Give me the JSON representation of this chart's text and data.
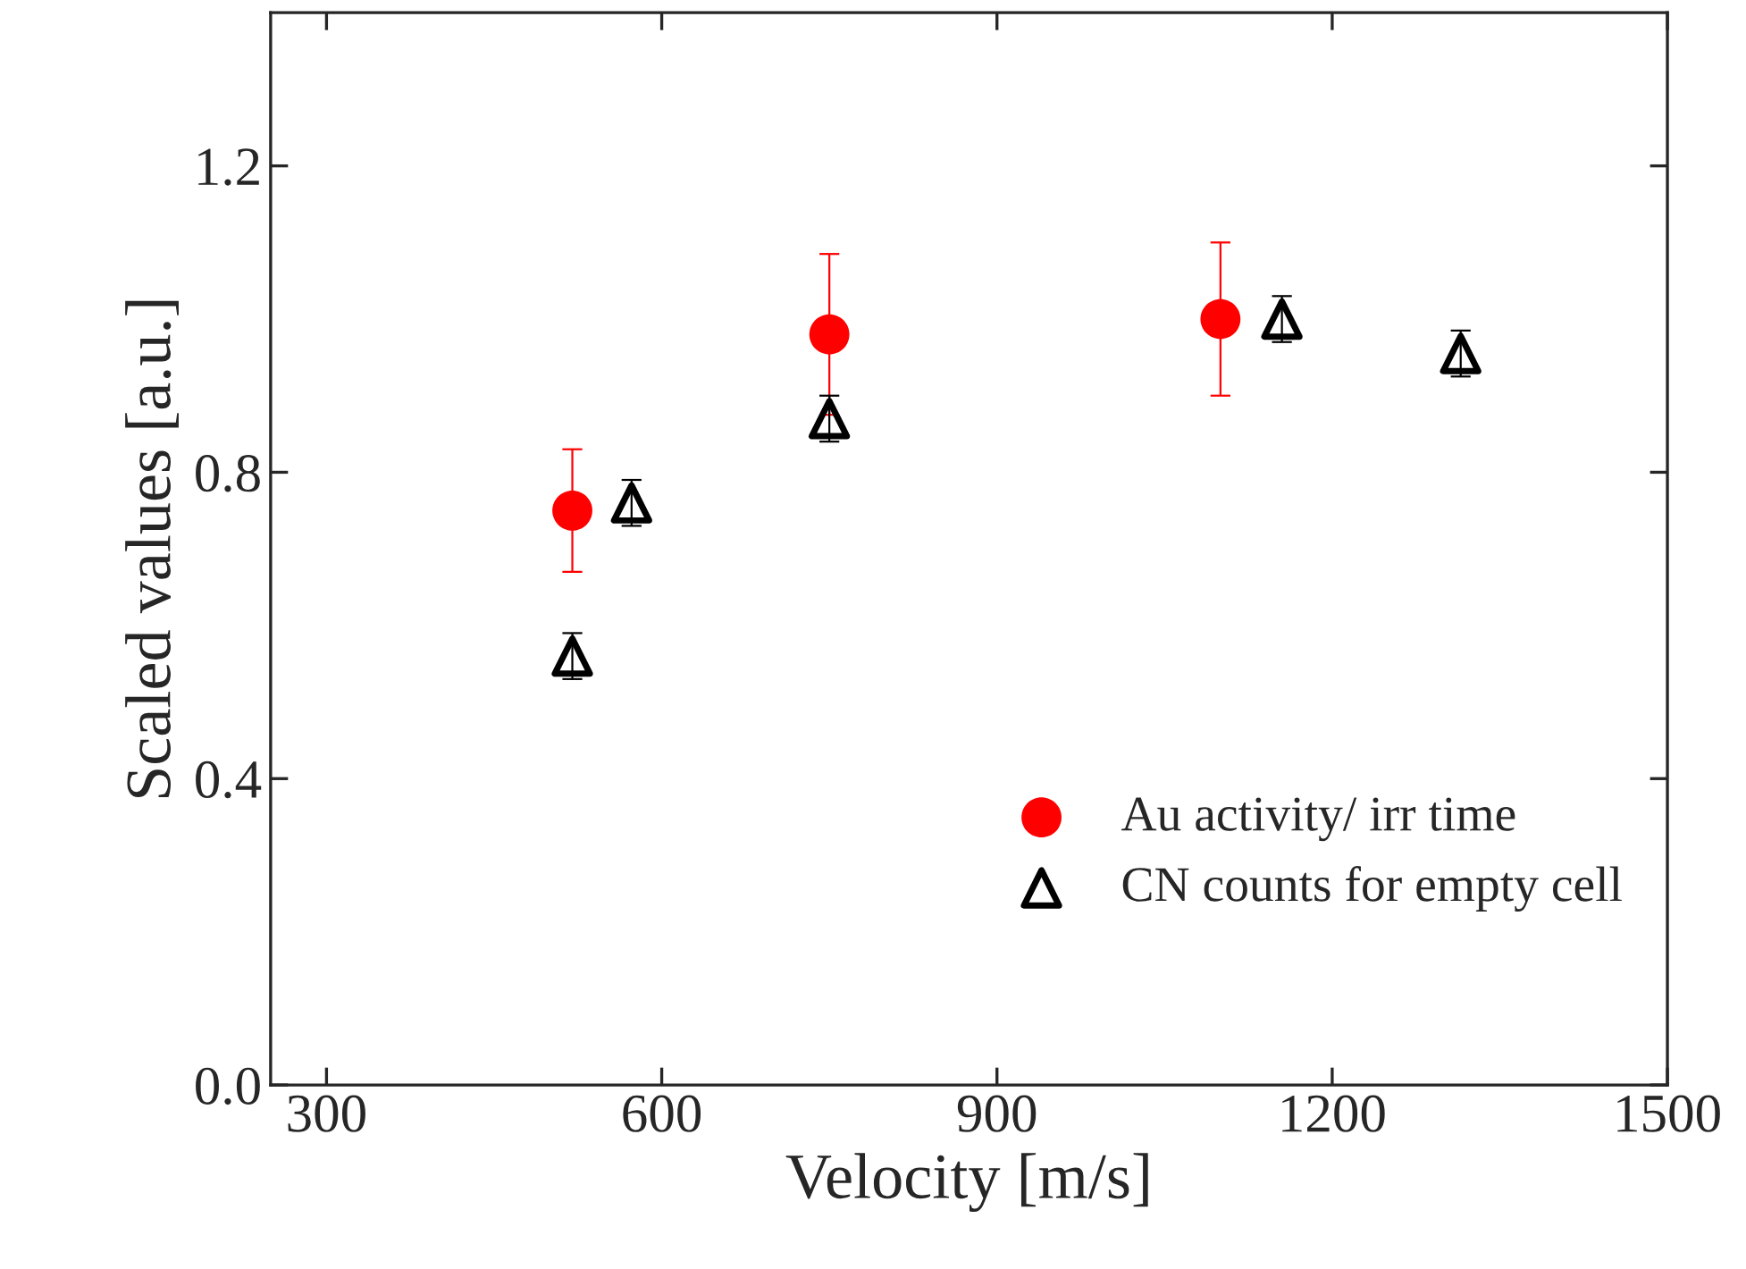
{
  "chart_data": {
    "type": "scatter",
    "xlabel": "Velocity [m/s]",
    "ylabel": "Scaled values [a.u.]",
    "xlim": [
      250,
      1500
    ],
    "ylim": [
      0,
      1.4
    ],
    "xticks": [
      300,
      600,
      900,
      1200,
      1500
    ],
    "yticks": [
      {
        "value": 0,
        "label": "0.0"
      },
      0.4,
      0.8,
      1.2
    ],
    "grid": false,
    "legend": "bottom right",
    "series": [
      {
        "name": "Au activity/ irr time",
        "color": "#ff0000",
        "marker": "circle",
        "x": [
          520,
          750,
          1100
        ],
        "values": [
          0.75,
          0.98,
          1.0
        ],
        "errors": [
          0.08,
          0.105,
          0.1
        ]
      },
      {
        "name": "CN counts for empty cell",
        "color": "#000000",
        "marker": "triangle",
        "x": [
          520,
          573,
          750,
          1155,
          1315
        ],
        "values": [
          0.56,
          0.76,
          0.87,
          1.0,
          0.955
        ],
        "errors": [
          0.03,
          0.03,
          0.03,
          0.03,
          0.03
        ]
      }
    ]
  }
}
